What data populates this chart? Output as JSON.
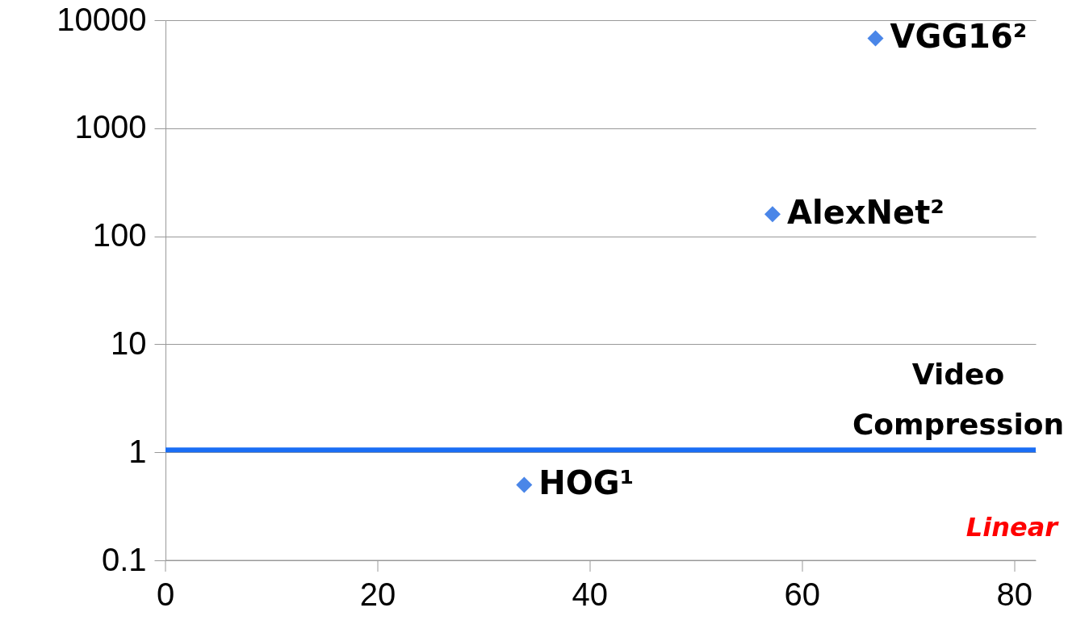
{
  "chart_data": {
    "type": "scatter",
    "log": "y",
    "grid": "y",
    "xlim": [
      0,
      82
    ],
    "xticks": [
      0,
      20,
      40,
      60,
      80
    ],
    "ylim": [
      0.1,
      10000
    ],
    "yticks": [
      0.1,
      1,
      10,
      100,
      1000,
      10000
    ],
    "series": [
      {
        "marker": "diamond",
        "color": "#4a86e8",
        "x": [
          33.8,
          57.2,
          66.9
        ],
        "values": [
          0.5,
          160,
          6800
        ]
      },
      {
        "type": "line",
        "marker": "none",
        "name": "Video Compression",
        "color": "#1a6ef5",
        "x": [
          0,
          82
        ],
        "values": [
          1.05,
          1.05
        ]
      }
    ],
    "annotations": [
      {
        "text": "HOG¹",
        "x": 33.8,
        "y": 0.5
      },
      {
        "text": "AlexNet²",
        "x": 57.2,
        "y": 160
      },
      {
        "text": "VGG16²",
        "x": 66.9,
        "y": 6800
      },
      "Linear"
    ]
  }
}
